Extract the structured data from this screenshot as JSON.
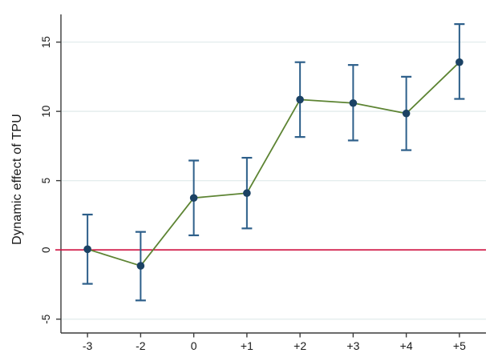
{
  "chart_data": {
    "type": "scatter",
    "subtype": "event-study-with-confidence-intervals",
    "title": "",
    "xlabel": "",
    "ylabel": "Dynamic effect of TPU",
    "categories": [
      "-3",
      "-2",
      "0",
      "+1",
      "+2",
      "+3",
      "+4",
      "+5"
    ],
    "series": [
      {
        "name": "Dynamic effect of TPU",
        "values": [
          0.05,
          -1.15,
          3.75,
          4.1,
          10.85,
          10.6,
          9.85,
          13.55
        ],
        "ci_low": [
          -2.45,
          -3.65,
          1.05,
          1.55,
          8.15,
          7.9,
          7.2,
          10.9
        ],
        "ci_high": [
          2.55,
          1.3,
          6.45,
          6.65,
          13.55,
          13.35,
          12.5,
          16.3
        ]
      }
    ],
    "y_ticks": [
      -5,
      0,
      5,
      10,
      15
    ],
    "ylim": [
      -6,
      17
    ],
    "reference_line_y": 0,
    "grid": true,
    "legend": "none",
    "colors": {
      "marker": "#1b4264",
      "error_bar": "#2d5f8a",
      "line": "#5d8433",
      "reference_line": "#cf1241",
      "gridline": "#e4edee",
      "axis": "#3a3a3a",
      "text": "#1a1a1a"
    }
  }
}
